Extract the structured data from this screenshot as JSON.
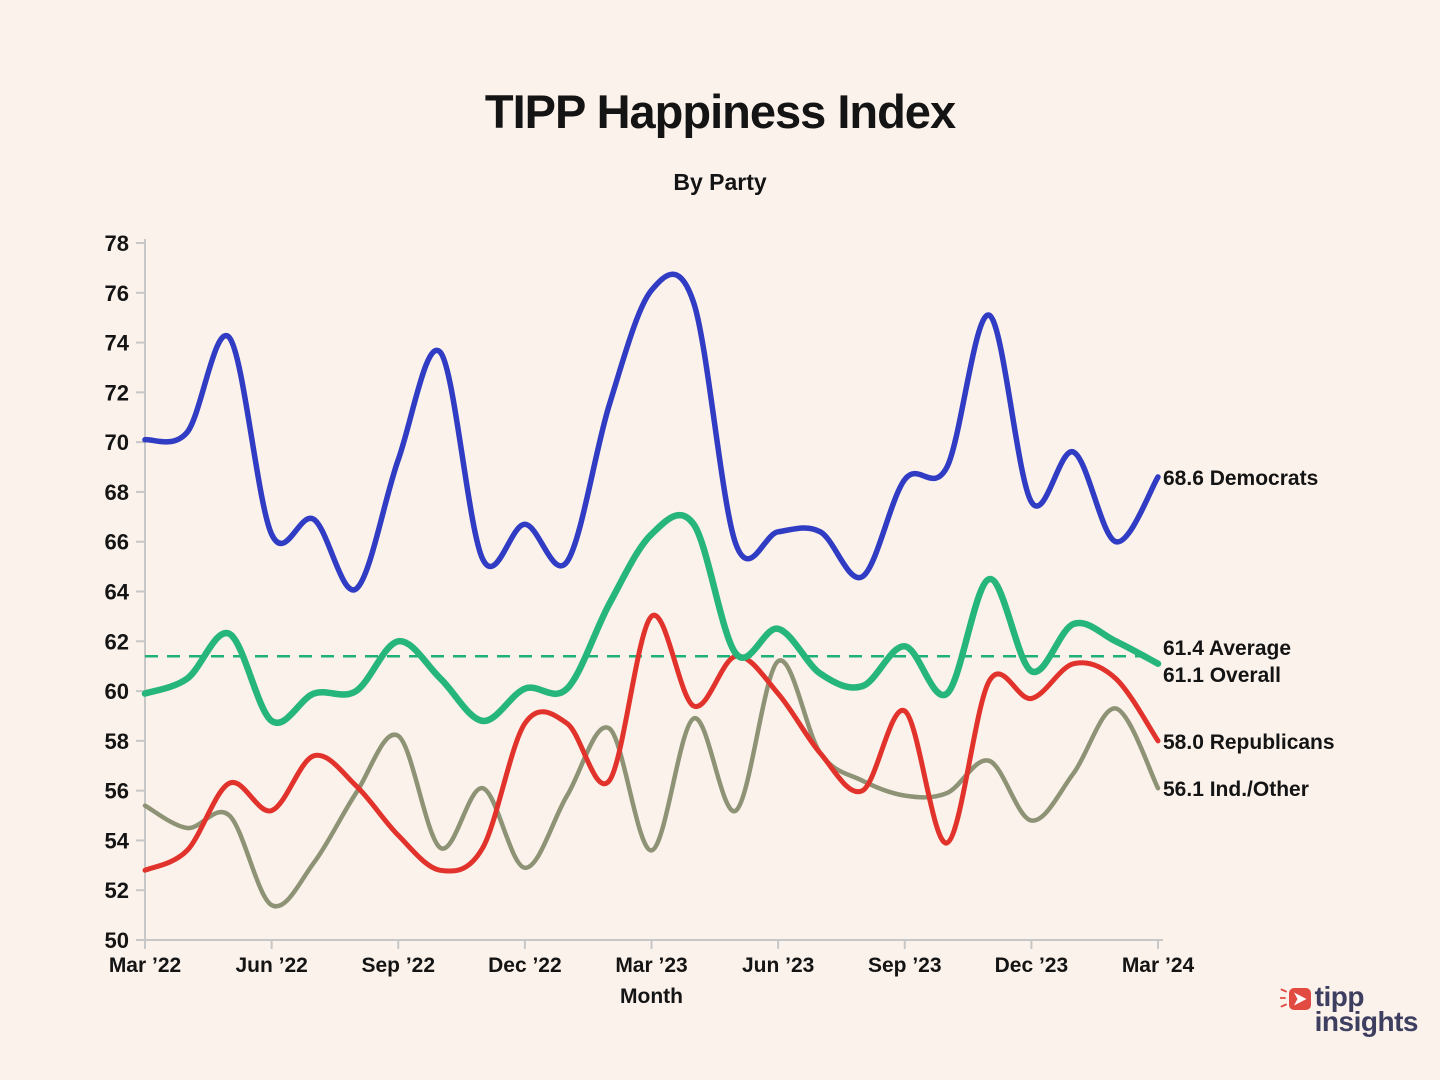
{
  "page": {
    "background": "#fbf2eb"
  },
  "logo": {
    "line1": "tipp",
    "line2": "insights",
    "icon_color": "#e14b41",
    "text_color": "#3d3e60"
  },
  "chart_data": {
    "type": "line",
    "title": "TIPP Happiness Index",
    "subtitle": "By Party",
    "xlabel": "Month",
    "ylim": [
      50,
      78
    ],
    "grid": false,
    "legend_position": "labels-at-line-ends",
    "axis_color": "#c7c7c7",
    "text_color": "#141414",
    "y_ticks": [
      50,
      52,
      54,
      56,
      58,
      60,
      62,
      64,
      66,
      68,
      70,
      72,
      74,
      76,
      78
    ],
    "x_tick_labels": [
      "Mar ’22",
      "Jun ’22",
      "Sep ’22",
      "Dec ’22",
      "Mar ’23",
      "Jun ’23",
      "Sep ’23",
      "Dec ’23",
      "Mar ’24"
    ],
    "x_tick_months": [
      0,
      3,
      6,
      9,
      12,
      15,
      18,
      21,
      24
    ],
    "x_months_span": 24,
    "series": [
      {
        "name": "Democrats",
        "color": "#2f3cc3",
        "end_label": "68.6 Democrats",
        "last_value": 68.6,
        "values": [
          70.1,
          70.4,
          74.2,
          66.3,
          66.9,
          64.1,
          69.3,
          73.6,
          65.3,
          66.7,
          65.2,
          71.5,
          76.1,
          75.6,
          65.9,
          66.4,
          66.4,
          64.6,
          68.5,
          69.0,
          75.1,
          67.6,
          69.6,
          66.0,
          68.6
        ]
      },
      {
        "name": "Overall",
        "color": "#26b67c",
        "end_label": "61.1 Overall",
        "last_value": 61.1,
        "values": [
          59.9,
          60.5,
          62.3,
          58.8,
          59.9,
          60.0,
          62.0,
          60.5,
          58.8,
          60.1,
          60.1,
          63.5,
          66.3,
          66.7,
          61.5,
          62.5,
          60.7,
          60.2,
          61.8,
          59.9,
          64.5,
          60.8,
          62.7,
          62.0,
          61.1
        ]
      },
      {
        "name": "Republicans",
        "color": "#e1332b",
        "end_label": "58.0 Republicans",
        "last_value": 58.0,
        "values": [
          52.8,
          53.6,
          56.3,
          55.2,
          57.4,
          56.2,
          54.2,
          52.8,
          53.7,
          58.7,
          58.7,
          56.4,
          63.0,
          59.4,
          61.4,
          59.9,
          57.5,
          56.0,
          59.2,
          53.9,
          60.4,
          59.7,
          61.1,
          60.5,
          58.0
        ]
      },
      {
        "name": "Ind./Other",
        "color": "#8e9376",
        "end_label": "56.1 Ind./Other",
        "last_value": 56.1,
        "values": [
          55.4,
          54.5,
          55.0,
          51.4,
          53.1,
          55.9,
          58.2,
          53.7,
          56.1,
          52.9,
          55.8,
          58.5,
          53.6,
          58.9,
          55.2,
          61.2,
          57.5,
          56.4,
          55.8,
          55.9,
          57.2,
          54.8,
          56.7,
          59.3,
          56.1
        ]
      }
    ],
    "average_line": {
      "value": 61.4,
      "color": "#1db07a",
      "style": "dashed",
      "end_label": "61.4 Average"
    },
    "annotations": [
      {
        "text": "68.6 Democrats",
        "anchor_value": 68.6
      },
      {
        "text": "61.4 Average",
        "anchor_value": 61.78
      },
      {
        "text": "61.1 Overall",
        "anchor_value": 60.68
      },
      {
        "text": "58.0 Republicans",
        "anchor_value": 58.0
      },
      {
        "text": "56.1 Ind./Other",
        "anchor_value": 56.1
      }
    ]
  }
}
